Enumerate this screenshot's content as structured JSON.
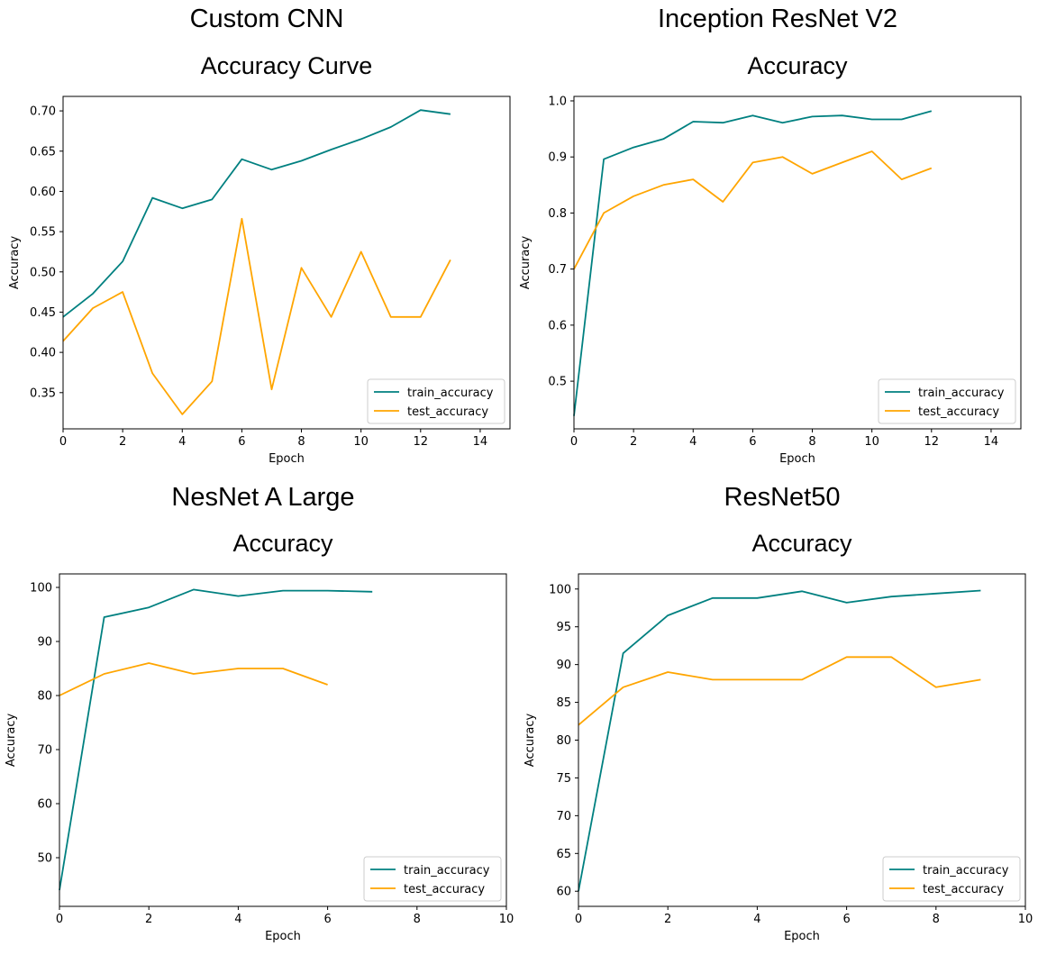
{
  "colors": {
    "train": "#008080",
    "test": "#FFA500"
  },
  "chart_data": [
    {
      "type": "line",
      "heading": "Custom CNN",
      "title": "Accuracy Curve",
      "xlabel": "Epoch",
      "ylabel": "Accuracy",
      "xlim": [
        0,
        15
      ],
      "ylim": [
        0.305,
        0.718
      ],
      "xticks": [
        0,
        2,
        4,
        6,
        8,
        10,
        12,
        14
      ],
      "yticks": [
        0.35,
        0.4,
        0.45,
        0.5,
        0.55,
        0.6,
        0.65,
        0.7
      ],
      "ytick_decimals": 2,
      "legend": "lower-right",
      "series": [
        {
          "name": "train_accuracy",
          "color": "#008080",
          "x": [
            0,
            1,
            2,
            3,
            4,
            5,
            6,
            7,
            8,
            9,
            10,
            11,
            12,
            13
          ],
          "y": [
            0.444,
            0.473,
            0.513,
            0.592,
            0.579,
            0.59,
            0.64,
            0.627,
            0.638,
            0.652,
            0.665,
            0.68,
            0.701,
            0.696
          ]
        },
        {
          "name": "test_accuracy",
          "color": "#FFA500",
          "x": [
            0,
            1,
            2,
            3,
            4,
            5,
            6,
            7,
            8,
            9,
            10,
            11,
            12,
            13
          ],
          "y": [
            0.414,
            0.455,
            0.475,
            0.374,
            0.323,
            0.364,
            0.566,
            0.354,
            0.505,
            0.444,
            0.525,
            0.444,
            0.444,
            0.515
          ]
        }
      ]
    },
    {
      "type": "line",
      "heading": "Inception ResNet V2",
      "title": "Accuracy",
      "xlabel": "Epoch",
      "ylabel": "Accuracy",
      "xlim": [
        0,
        15
      ],
      "ylim": [
        0.415,
        1.008
      ],
      "xticks": [
        0,
        2,
        4,
        6,
        8,
        10,
        12,
        14
      ],
      "yticks": [
        0.5,
        0.6,
        0.7,
        0.8,
        0.9,
        1.0
      ],
      "ytick_decimals": 1,
      "legend": "lower-right",
      "series": [
        {
          "name": "train_accuracy",
          "color": "#008080",
          "x": [
            0,
            1,
            2,
            3,
            4,
            5,
            6,
            7,
            8,
            9,
            10,
            11,
            12
          ],
          "y": [
            0.438,
            0.896,
            0.917,
            0.932,
            0.963,
            0.961,
            0.974,
            0.961,
            0.972,
            0.974,
            0.967,
            0.967,
            0.982
          ]
        },
        {
          "name": "test_accuracy",
          "color": "#FFA500",
          "x": [
            0,
            1,
            2,
            3,
            4,
            5,
            6,
            7,
            8,
            9,
            10,
            11,
            12
          ],
          "y": [
            0.7,
            0.8,
            0.83,
            0.85,
            0.86,
            0.82,
            0.89,
            0.9,
            0.87,
            0.89,
            0.91,
            0.86,
            0.88
          ]
        }
      ]
    },
    {
      "type": "line",
      "heading": "NesNet A Large",
      "title": "Accuracy",
      "xlabel": "Epoch",
      "ylabel": "Accuracy",
      "xlim": [
        0,
        10
      ],
      "ylim": [
        41,
        102.5
      ],
      "xticks": [
        0,
        2,
        4,
        6,
        8,
        10
      ],
      "yticks": [
        50,
        60,
        70,
        80,
        90,
        100
      ],
      "ytick_decimals": 0,
      "legend": "lower-right",
      "series": [
        {
          "name": "train_accuracy",
          "color": "#008080",
          "x": [
            0,
            1,
            2,
            3,
            4,
            5,
            6,
            7
          ],
          "y": [
            44,
            94.5,
            96.3,
            99.6,
            98.4,
            99.4,
            99.4,
            99.2
          ]
        },
        {
          "name": "test_accuracy",
          "color": "#FFA500",
          "x": [
            0,
            1,
            2,
            3,
            4,
            5,
            6
          ],
          "y": [
            80,
            84,
            86,
            84,
            85,
            85,
            82
          ]
        }
      ]
    },
    {
      "type": "line",
      "heading": "ResNet50",
      "title": "Accuracy",
      "xlabel": "Epoch",
      "ylabel": "Accuracy",
      "xlim": [
        0,
        10
      ],
      "ylim": [
        58,
        102
      ],
      "xticks": [
        0,
        2,
        4,
        6,
        8,
        10
      ],
      "yticks": [
        60,
        65,
        70,
        75,
        80,
        85,
        90,
        95,
        100
      ],
      "ytick_decimals": 0,
      "legend": "lower-right",
      "series": [
        {
          "name": "train_accuracy",
          "color": "#008080",
          "x": [
            0,
            1,
            2,
            3,
            4,
            5,
            6,
            7,
            8,
            9
          ],
          "y": [
            60,
            91.5,
            96.5,
            98.8,
            98.8,
            99.7,
            98.2,
            99.0,
            99.4,
            99.8
          ]
        },
        {
          "name": "test_accuracy",
          "color": "#FFA500",
          "x": [
            0,
            1,
            2,
            3,
            4,
            5,
            6,
            7,
            8,
            9
          ],
          "y": [
            82,
            87,
            89,
            88,
            88,
            88,
            91,
            91,
            87,
            88
          ]
        }
      ]
    }
  ]
}
